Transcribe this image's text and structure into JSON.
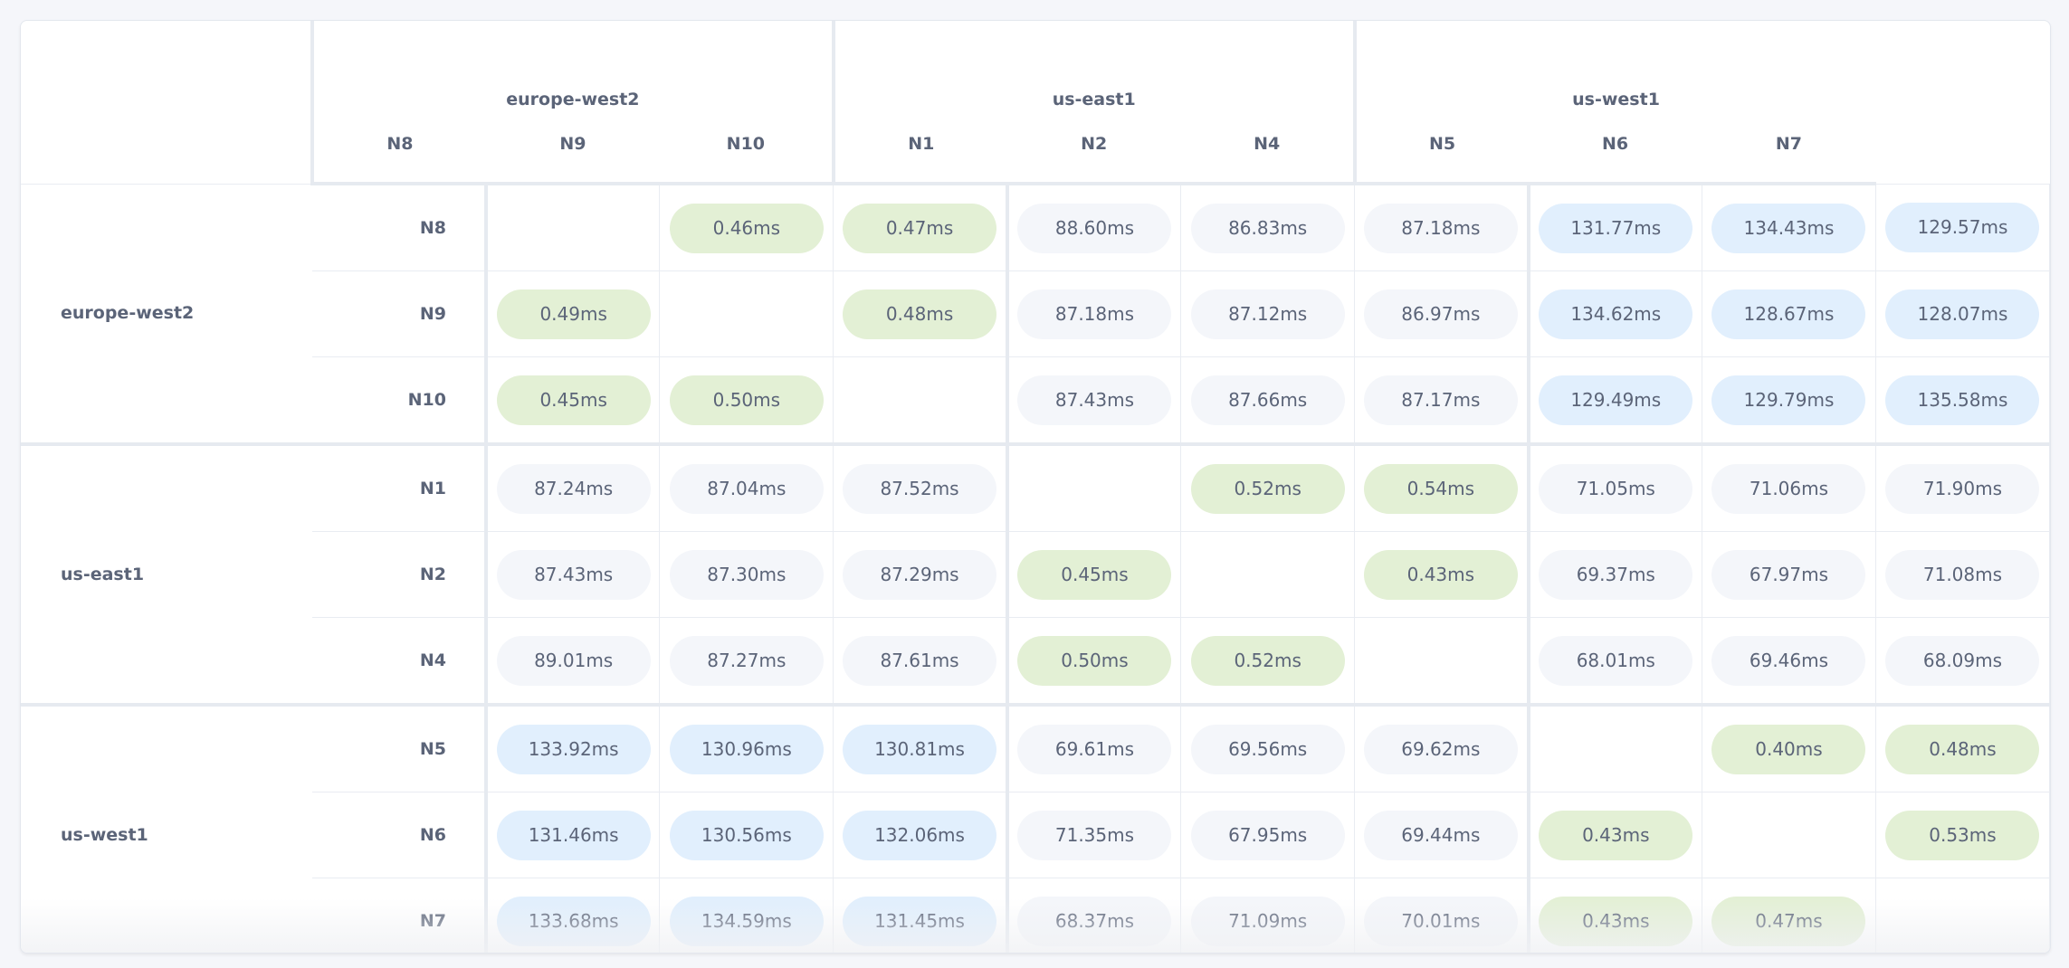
{
  "colors": {
    "local": "#e3f0d5",
    "mid": "#f4f6fa",
    "far": "#e1effd",
    "text": "#5b6478"
  },
  "groups": [
    {
      "name": "europe-west2",
      "nodes": [
        "N8",
        "N9",
        "N10"
      ]
    },
    {
      "name": "us-east1",
      "nodes": [
        "N1",
        "N2",
        "N4"
      ]
    },
    {
      "name": "us-west1",
      "nodes": [
        "N5",
        "N6",
        "N7"
      ]
    }
  ],
  "matrix": [
    [
      "",
      "0.46ms",
      "0.47ms",
      "88.60ms",
      "86.83ms",
      "87.18ms",
      "131.77ms",
      "134.43ms",
      "129.57ms"
    ],
    [
      "0.49ms",
      "",
      "0.48ms",
      "87.18ms",
      "87.12ms",
      "86.97ms",
      "134.62ms",
      "128.67ms",
      "128.07ms"
    ],
    [
      "0.45ms",
      "0.50ms",
      "",
      "87.43ms",
      "87.66ms",
      "87.17ms",
      "129.49ms",
      "129.79ms",
      "135.58ms"
    ],
    [
      "87.24ms",
      "87.04ms",
      "87.52ms",
      "",
      "0.52ms",
      "0.54ms",
      "71.05ms",
      "71.06ms",
      "71.90ms"
    ],
    [
      "87.43ms",
      "87.30ms",
      "87.29ms",
      "0.45ms",
      "",
      "0.43ms",
      "69.37ms",
      "67.97ms",
      "71.08ms"
    ],
    [
      "89.01ms",
      "87.27ms",
      "87.61ms",
      "0.50ms",
      "0.52ms",
      "",
      "68.01ms",
      "69.46ms",
      "68.09ms"
    ],
    [
      "133.92ms",
      "130.96ms",
      "130.81ms",
      "69.61ms",
      "69.56ms",
      "69.62ms",
      "",
      "0.40ms",
      "0.48ms"
    ],
    [
      "131.46ms",
      "130.56ms",
      "132.06ms",
      "71.35ms",
      "67.95ms",
      "69.44ms",
      "0.43ms",
      "",
      "0.53ms"
    ],
    [
      "133.68ms",
      "134.59ms",
      "131.45ms",
      "68.37ms",
      "71.09ms",
      "70.01ms",
      "0.43ms",
      "0.47ms",
      ""
    ]
  ]
}
